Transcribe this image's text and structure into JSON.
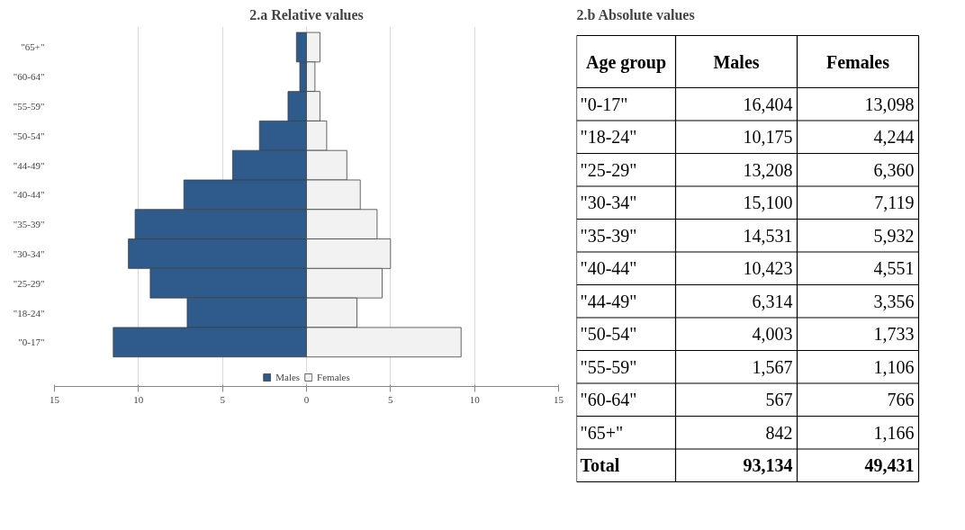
{
  "chart_data": [
    {
      "type": "bar",
      "title": "2.a Relative values",
      "orientation": "horizontal",
      "stacked": true,
      "categories": [
        "\"65+\"",
        "\"60-64\"",
        "\"55-59\"",
        "\"50-54\"",
        "\"44-49\"",
        "\"40-44\"",
        "\"35-39\"",
        "\"30-34\"",
        "\"25-29\"",
        "\"18-24\"",
        "\"0-17\""
      ],
      "series": [
        {
          "name": "Males",
          "color": "#2e5a8c",
          "values": [
            -0.6,
            -0.4,
            -1.1,
            -2.8,
            -4.4,
            -7.3,
            -10.2,
            -10.6,
            -9.3,
            -7.1,
            -11.5
          ]
        },
        {
          "name": "Females",
          "color": "#f2f2f2",
          "values": [
            0.8,
            0.5,
            0.8,
            1.2,
            2.4,
            3.2,
            4.2,
            5.0,
            4.5,
            3.0,
            9.2
          ]
        }
      ],
      "xlim": [
        -15,
        15
      ],
      "xticks": [
        {
          "value": -15,
          "label": "15"
        },
        {
          "value": -10,
          "label": "10"
        },
        {
          "value": -5,
          "label": "5"
        },
        0,
        5,
        10,
        15
      ],
      "grid": "x",
      "legend": "bottom"
    },
    {
      "type": "other",
      "title": "2.b Absolute values",
      "categories": [
        "\"0-17\"",
        "\"18-24\"",
        "\"25-29\"",
        "\"30-34\"",
        "\"35-39\"",
        "\"40-44\"",
        "\"44-49\"",
        "\"50-54\"",
        "\"55-59\"",
        "\"60-64\"",
        "\"65+\""
      ],
      "series": [
        {
          "name": "Males",
          "values": [
            16404,
            10175,
            13208,
            15100,
            14531,
            10423,
            6314,
            4003,
            1567,
            567,
            842
          ],
          "value_labels": [
            "16,404",
            "10,175",
            "13,208",
            "15,100",
            "14,531",
            "10,423",
            "6,314",
            "4,003",
            "1,567",
            "567",
            "842"
          ]
        },
        {
          "name": "Females",
          "values": [
            13098,
            4244,
            6360,
            7119,
            5932,
            4551,
            3356,
            1733,
            1106,
            766,
            1166
          ],
          "value_labels": [
            "13,098",
            "4,244",
            "6,360",
            "7,119",
            "5,932",
            "4,551",
            "3,356",
            "1,733",
            "1,106",
            "766",
            "1,166"
          ]
        }
      ],
      "totals": [
        "93,134",
        "49,431"
      ],
      "annotations": [
        "Age group",
        "Total"
      ]
    }
  ]
}
